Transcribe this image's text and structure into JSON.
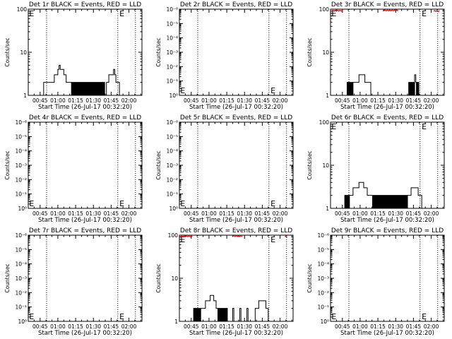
{
  "chart_data": [
    {
      "type": "line",
      "title": "Det 1r BLACK = Events, RED = LLD",
      "xlabel": "Start Time (26-Jul-17 00:32:20)",
      "ylabel": "Counts/sec",
      "yscale": "log",
      "ylim": [
        1,
        100
      ],
      "yticks": [
        "1",
        "10",
        "100"
      ],
      "xlim_minutes": [
        35,
        131
      ],
      "xticks": [
        "00:45",
        "01:00",
        "01:15",
        "01:30",
        "01:45",
        "02:00"
      ],
      "dotted_lines_minutes": [
        50.5,
        110.6,
        125.5
      ],
      "e_markers_minutes": [
        35.8,
        112
      ],
      "events_steps": [
        [
          35,
          1
        ],
        [
          48,
          2
        ],
        [
          57,
          3
        ],
        [
          60,
          4
        ],
        [
          61,
          5
        ],
        [
          62,
          4
        ],
        [
          65,
          3
        ],
        [
          67,
          2
        ],
        [
          101,
          2
        ],
        [
          103,
          3
        ],
        [
          107,
          4
        ],
        [
          108,
          3
        ],
        [
          109,
          2
        ],
        [
          112,
          1
        ],
        [
          131,
          1
        ]
      ],
      "events_alternating": [
        [
          71,
          100,
          1,
          2
        ]
      ],
      "lld_segments": []
    },
    {
      "type": "line",
      "title": "Det 2r BLACK = Events, RED = LLD",
      "xlabel": "Start Time (26-Jul-17 00:32:20)",
      "ylabel": "Counts/sec",
      "yscale": "log",
      "ylim": [
        1,
        1000000
      ],
      "yticks": [
        "10⁰",
        "10⁻¹",
        "10⁻²",
        "10⁻³",
        "10⁻⁴",
        "10⁻⁵",
        "10⁻⁶"
      ],
      "xlim_minutes": [
        35,
        131
      ],
      "xticks": [
        "00:45",
        "01:00",
        "01:15",
        "01:30",
        "01:45",
        "02:00"
      ],
      "dotted_lines_minutes": [
        50.5,
        110.6,
        125.5
      ],
      "e_markers_minutes": [
        35.8,
        112
      ],
      "events_steps": [],
      "events_alternating": [],
      "lld_segments": []
    },
    {
      "type": "line",
      "title": "Det 3r BLACK = Events, RED = LLD",
      "xlabel": "Start Time (26-Jul-17 00:32:20)",
      "ylabel": "Counts/sec",
      "yscale": "log",
      "ylim": [
        1,
        100
      ],
      "yticks": [
        "1",
        "10",
        "100"
      ],
      "xlim_minutes": [
        35,
        131
      ],
      "xticks": [
        "00:45",
        "01:00",
        "01:15",
        "01:30",
        "01:45",
        "02:00"
      ],
      "dotted_lines_minutes": [
        50.5,
        110.6,
        125.5
      ],
      "e_markers_minutes": [
        35.8,
        112
      ],
      "events_steps": [
        [
          35,
          1
        ],
        [
          54,
          2
        ],
        [
          59,
          3
        ],
        [
          64,
          2
        ],
        [
          69,
          1
        ],
        [
          106,
          3
        ],
        [
          107,
          2
        ],
        [
          110,
          1
        ],
        [
          131,
          1
        ]
      ],
      "events_alternating": [
        [
          49,
          54,
          1,
          2
        ],
        [
          101,
          106,
          1,
          2
        ],
        [
          107,
          110,
          1,
          2
        ]
      ],
      "lld_segments": [
        [
          35,
          45,
          92
        ],
        [
          79,
          92,
          93
        ],
        [
          122,
          127,
          90
        ]
      ]
    },
    {
      "type": "line",
      "title": "Det 4r BLACK = Events, RED = LLD",
      "xlabel": "Start Time (26-Jul-17 00:32:20)",
      "ylabel": "Counts/sec",
      "yscale": "log",
      "ylim": [
        1,
        1000000
      ],
      "yticks": [
        "10⁰",
        "10⁻¹",
        "10⁻²",
        "10⁻³",
        "10⁻⁴",
        "10⁻⁵",
        "10⁻⁶"
      ],
      "xlim_minutes": [
        35,
        131
      ],
      "xticks": [
        "00:45",
        "01:00",
        "01:15",
        "01:30",
        "01:45",
        "02:00"
      ],
      "dotted_lines_minutes": [
        50.5,
        110.6,
        125.5
      ],
      "e_markers_minutes": [
        35.8,
        112
      ],
      "events_steps": [],
      "events_alternating": [],
      "lld_segments": []
    },
    {
      "type": "line",
      "title": "Det 5r BLACK = Events, RED = LLD",
      "xlabel": "Start Time (26-Jul-17 00:32:20)",
      "ylabel": "Counts/sec",
      "yscale": "log",
      "ylim": [
        1,
        1000000
      ],
      "yticks": [
        "10⁰",
        "10⁻¹",
        "10⁻²",
        "10⁻³",
        "10⁻⁴",
        "10⁻⁵",
        "10⁻⁶"
      ],
      "xlim_minutes": [
        35,
        131
      ],
      "xticks": [
        "00:45",
        "01:00",
        "01:15",
        "01:30",
        "01:45",
        "02:00"
      ],
      "dotted_lines_minutes": [
        50.5,
        110.6,
        125.5
      ],
      "e_markers_minutes": [
        35.8,
        112
      ],
      "events_steps": [],
      "events_alternating": [],
      "lld_segments": []
    },
    {
      "type": "line",
      "title": "Det 6r BLACK = Events, RED = LLD",
      "xlabel": "Start Time (26-Jul-17 00:32:20)",
      "ylabel": "Counts/sec",
      "yscale": "log",
      "ylim": [
        1,
        100
      ],
      "yticks": [
        "1",
        "10",
        "100"
      ],
      "xlim_minutes": [
        35,
        131
      ],
      "xticks": [
        "00:45",
        "01:00",
        "01:15",
        "01:30",
        "01:45",
        "02:00"
      ],
      "dotted_lines_minutes": [
        50.5,
        110.6,
        125.5
      ],
      "e_markers_minutes": [
        35.8,
        112
      ],
      "events_steps": [
        [
          35,
          1
        ],
        [
          51,
          2
        ],
        [
          54,
          3
        ],
        [
          59,
          4
        ],
        [
          63,
          3
        ],
        [
          66,
          2
        ],
        [
          100,
          2
        ],
        [
          103,
          3
        ],
        [
          109,
          2
        ],
        [
          112,
          1
        ],
        [
          131,
          1
        ]
      ],
      "events_alternating": [
        [
          47,
          51,
          1,
          2
        ],
        [
          70,
          100,
          1,
          2
        ]
      ],
      "lld_segments": []
    },
    {
      "type": "line",
      "title": "Det 7r BLACK = Events, RED = LLD",
      "xlabel": "Start Time (26-Jul-17 00:32:20)",
      "ylabel": "Counts/sec",
      "yscale": "log",
      "ylim": [
        1,
        1000000
      ],
      "yticks": [
        "10⁰",
        "10⁻¹",
        "10⁻²",
        "10⁻³",
        "10⁻⁴",
        "10⁻⁵",
        "10⁻⁶"
      ],
      "xlim_minutes": [
        35,
        131
      ],
      "xticks": [
        "00:45",
        "01:00",
        "01:15",
        "01:30",
        "01:45",
        "02:00"
      ],
      "dotted_lines_minutes": [
        50.5,
        110.6,
        125.5
      ],
      "e_markers_minutes": [
        35.8,
        112
      ],
      "events_steps": [],
      "events_alternating": [],
      "lld_segments": []
    },
    {
      "type": "line",
      "title": "Det 8r BLACK = Events, RED = LLD",
      "xlabel": "Start Time (26-Jul-17 00:32:20)",
      "ylabel": "Counts/sec",
      "yscale": "log",
      "ylim": [
        1,
        100
      ],
      "yticks": [
        "1",
        "10",
        "100"
      ],
      "xlim_minutes": [
        35,
        131
      ],
      "xticks": [
        "00:45",
        "01:00",
        "01:15",
        "01:30",
        "01:45",
        "02:00"
      ],
      "dotted_lines_minutes": [
        50.5,
        110.6,
        125.5
      ],
      "e_markers_minutes": [
        35.8,
        112
      ],
      "events_steps": [
        [
          35,
          1
        ],
        [
          53,
          2
        ],
        [
          57,
          3
        ],
        [
          61,
          4
        ],
        [
          64,
          3
        ],
        [
          66,
          2
        ],
        [
          76,
          1
        ],
        [
          80,
          2
        ],
        [
          81,
          1
        ],
        [
          86,
          2
        ],
        [
          87,
          1
        ],
        [
          92,
          2
        ],
        [
          93,
          1
        ],
        [
          99,
          2
        ],
        [
          102,
          3
        ],
        [
          108,
          2
        ],
        [
          110,
          1
        ],
        [
          131,
          1
        ]
      ],
      "events_alternating": [
        [
          47,
          53,
          1,
          2
        ],
        [
          67,
          76,
          1,
          2
        ]
      ],
      "lld_segments": [
        [
          35,
          46,
          94
        ],
        [
          80,
          88,
          95
        ],
        [
          124,
          126,
          92
        ]
      ]
    },
    {
      "type": "line",
      "title": "Det 9r BLACK = Events, RED = LLD",
      "xlabel": "Start Time (26-Jul-17 00:32:20)",
      "ylabel": "Counts/sec",
      "yscale": "log",
      "ylim": [
        1,
        1000000
      ],
      "yticks": [
        "10⁰",
        "10⁻¹",
        "10⁻²",
        "10⁻³",
        "10⁻⁴",
        "10⁻⁵",
        "10⁻⁶"
      ],
      "xlim_minutes": [
        35,
        131
      ],
      "xticks": [
        "00:45",
        "01:00",
        "01:15",
        "01:30",
        "01:45",
        "02:00"
      ],
      "dotted_lines_minutes": [
        50.5,
        110.6,
        125.5
      ],
      "e_markers_minutes": [
        35.8,
        112
      ],
      "events_steps": [],
      "events_alternating": [],
      "lld_segments": []
    }
  ],
  "marker_label": "E",
  "colors": {
    "events": "#000000",
    "lld": "#ff0000",
    "background": "#ffffff"
  }
}
